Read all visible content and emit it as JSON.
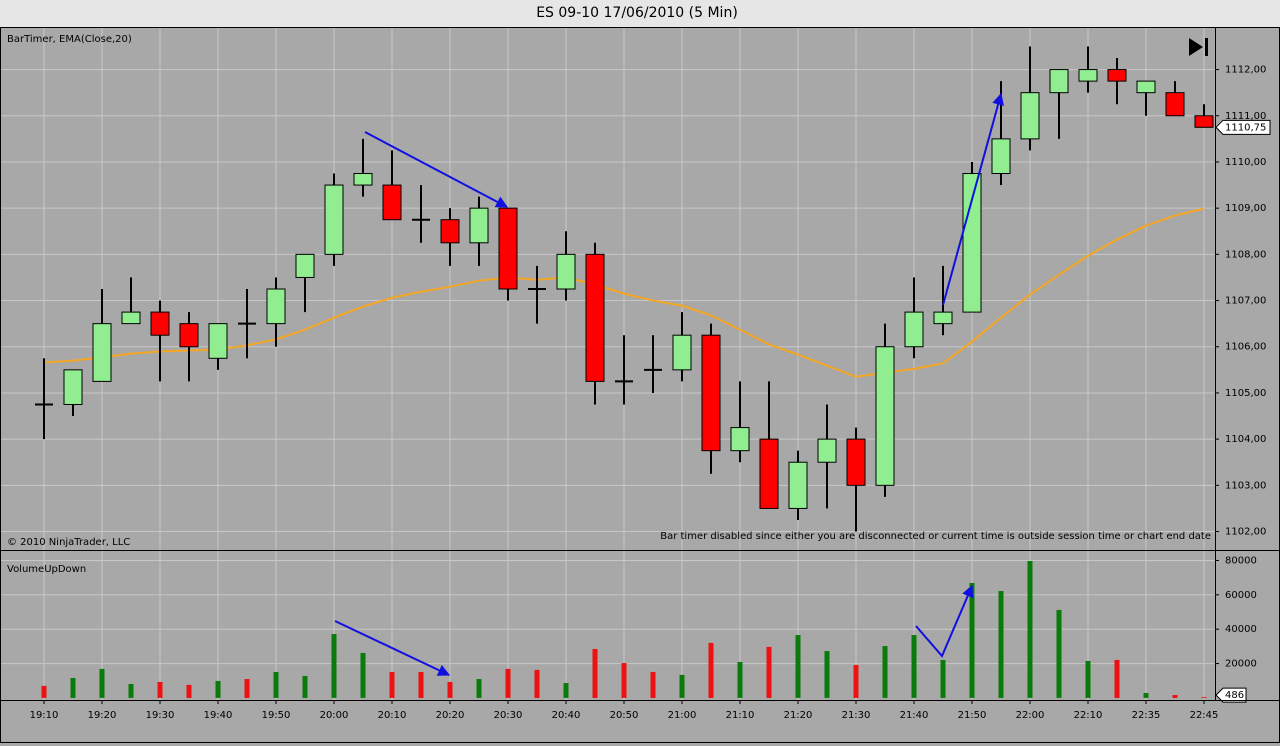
{
  "title": "ES 09-10  17/06/2010 (5 Min)",
  "chart_data": [
    {
      "type": "candlestick",
      "label": "BarTimer, EMA(Close,20)",
      "categories": [
        "19:10",
        null,
        "19:20",
        null,
        "19:30",
        null,
        "19:40",
        null,
        "19:50",
        null,
        "20:00",
        null,
        "20:10",
        null,
        "20:20",
        null,
        "20:30",
        null,
        "20:40",
        null,
        "20:50",
        null,
        "21:00",
        null,
        "21:10",
        null,
        "21:20",
        null,
        "21:30",
        null,
        "21:40",
        null,
        "21:50",
        null,
        "22:00",
        null,
        "22:10",
        null,
        "22:35",
        null,
        "22:45"
      ],
      "open": [
        1104.75,
        1104.75,
        1105.25,
        1106.5,
        1106.75,
        1106.5,
        1105.75,
        1106.5,
        1106.5,
        1107.5,
        1108,
        1109.5,
        1109.5,
        1108.75,
        1108.75,
        1108.25,
        1109,
        1107.25,
        1107.25,
        1108,
        1105.25,
        1105.5,
        1105.5,
        1106.25,
        1103.75,
        1104,
        1102.5,
        1103.5,
        1104,
        1103,
        1106,
        1106.5,
        1106.75,
        1109.75,
        1110.5,
        1111.5,
        1111.75,
        1112,
        1111.5,
        1111.5,
        1111
      ],
      "high": [
        1105.75,
        1105.5,
        1107.25,
        1107.5,
        1107,
        1106.75,
        1106.5,
        1107.25,
        1107.5,
        1108,
        1109.75,
        1110.5,
        1110.25,
        1109.5,
        1109,
        1109.25,
        1109,
        1107.75,
        1108.5,
        1108.25,
        1106.25,
        1106.25,
        1106.75,
        1106.5,
        1105.25,
        1105.25,
        1103.75,
        1104.75,
        1104.25,
        1106.5,
        1107.5,
        1107.75,
        1110,
        1111.75,
        1112.5,
        1112,
        1112.5,
        1112.25,
        1111.75,
        1111.75,
        1111.25
      ],
      "low": [
        1104,
        1104.5,
        1105.25,
        1106.5,
        1105.25,
        1105.25,
        1105.5,
        1105.75,
        1106,
        1106.75,
        1107.75,
        1109.25,
        1108.75,
        1108.25,
        1107.75,
        1107.75,
        1107,
        1106.5,
        1107,
        1104.75,
        1104.75,
        1105,
        1105.25,
        1103.25,
        1103.5,
        1102.5,
        1102.25,
        1102.5,
        1102,
        1102.75,
        1105.75,
        1106.25,
        1106.75,
        1109.5,
        1110.25,
        1110.5,
        1111.5,
        1111.25,
        1111,
        1111,
        1110.75
      ],
      "close": [
        1104.75,
        1105.5,
        1106.5,
        1106.75,
        1106.25,
        1106,
        1106.5,
        1106.5,
        1107.25,
        1108,
        1109.5,
        1109.75,
        1108.75,
        1108.75,
        1108.25,
        1109,
        1107.25,
        1107.25,
        1108,
        1105.25,
        1105.25,
        1105.5,
        1106.25,
        1103.75,
        1104.25,
        1102.5,
        1103.5,
        1104,
        1103,
        1106,
        1106.75,
        1106.75,
        1109.75,
        1110.5,
        1111.5,
        1112,
        1112,
        1111.75,
        1111.75,
        1111,
        1110.75
      ],
      "up_color": "#90ee90",
      "down_color": "#ff0000",
      "overlay": {
        "color": "#f5a623",
        "values": [
          1105.66,
          1105.7,
          1105.77,
          1105.85,
          1105.9,
          1105.92,
          1105.94,
          1106.03,
          1106.16,
          1106.37,
          1106.63,
          1106.87,
          1107.06,
          1107.19,
          1107.3,
          1107.43,
          1107.5,
          1107.45,
          1107.5,
          1107.35,
          1107.15,
          1107,
          1106.89,
          1106.68,
          1106.37,
          1106.05,
          1105.83,
          1105.59,
          1105.35,
          1105.44,
          1105.52,
          1105.64,
          1106.11,
          1106.63,
          1107.13,
          1107.56,
          1107.97,
          1108.32,
          1108.62,
          1108.84,
          1108.99
        ]
      },
      "ylim": [
        1101.6,
        1112.9
      ],
      "yticks": [
        {
          "value": 1102,
          "label": "1102,00"
        },
        {
          "value": 1103,
          "label": "1103,00"
        },
        {
          "value": 1104,
          "label": "1104,00"
        },
        {
          "value": 1105,
          "label": "1105,00"
        },
        {
          "value": 1106,
          "label": "1106,00"
        },
        {
          "value": 1107,
          "label": "1107,00"
        },
        {
          "value": 1108,
          "label": "1108,00"
        },
        {
          "value": 1109,
          "label": "1109,00"
        },
        {
          "value": 1110,
          "label": "1110,00"
        },
        {
          "value": 1111,
          "label": "1111,00"
        },
        {
          "value": 1112,
          "label": "1112,00"
        }
      ],
      "last_price": {
        "value": 1110.75,
        "label": "1110,75"
      },
      "copyright": "© 2010 NinjaTrader, LLC",
      "notice": "Bar timer disabled since either you are disconnected or current time is outside session time or chart end date",
      "grid": true
    },
    {
      "type": "bar",
      "label": "VolumeUpDown",
      "values": [
        7000,
        11600,
        16900,
        8100,
        9300,
        7600,
        9900,
        11000,
        15100,
        12800,
        37200,
        26200,
        15100,
        15100,
        9300,
        11000,
        16900,
        16300,
        8700,
        28500,
        20300,
        15100,
        13400,
        32000,
        20900,
        29700,
        36600,
        27300,
        19200,
        30200,
        36600,
        22100,
        66900,
        62200,
        79700,
        51200,
        21500,
        22100,
        2900,
        1700,
        486
      ],
      "up_color": "#0a7a0a",
      "down_color": "#ee1111",
      "ylim": [
        -1200,
        85500
      ],
      "yticks": [
        20000,
        40000,
        60000,
        80000
      ],
      "grid": true
    }
  ]
}
